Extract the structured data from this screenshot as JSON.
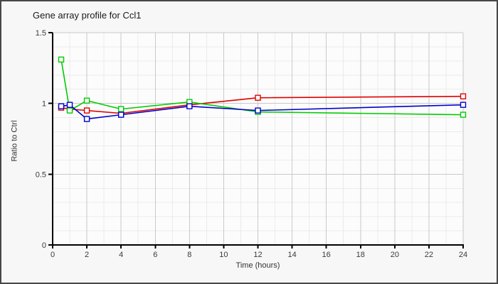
{
  "window": {
    "background": "#f7f7f7",
    "border_color": "#474747",
    "plot_background": "#fcfcfc",
    "grid_major_color": "#c9c9c9",
    "grid_minor_color": "#ebebeb",
    "axis_color": "#000000",
    "tick_label_color": "#3a3a3a"
  },
  "chart_data": {
    "type": "line",
    "title": "Gene array profile for Ccl1",
    "xlabel": "Time (hours)",
    "ylabel": "Ratio to Ctrl",
    "xlim": [
      0,
      24
    ],
    "ylim": [
      0,
      1.5
    ],
    "x_major_ticks": [
      0,
      2,
      4,
      6,
      8,
      10,
      12,
      14,
      16,
      18,
      20,
      22,
      24
    ],
    "y_major_ticks": [
      0,
      0.5,
      1,
      1.5
    ],
    "x_minor_step": 1,
    "y_minor_step": 0.1,
    "grid": true,
    "legend_position": "none",
    "marker": "open-square",
    "x": [
      0.5,
      1,
      2,
      4,
      8,
      12,
      24
    ],
    "series": [
      {
        "name": "series-red",
        "color": "#e00000",
        "values": [
          0.97,
          0.96,
          0.95,
          0.93,
          0.99,
          1.04,
          1.05
        ]
      },
      {
        "name": "series-green",
        "color": "#00cc00",
        "values": [
          1.31,
          0.95,
          1.02,
          0.96,
          1.01,
          0.94,
          0.92
        ]
      },
      {
        "name": "series-blue",
        "color": "#0000cc",
        "values": [
          0.98,
          0.99,
          0.89,
          0.92,
          0.98,
          0.95,
          0.99
        ]
      }
    ]
  }
}
